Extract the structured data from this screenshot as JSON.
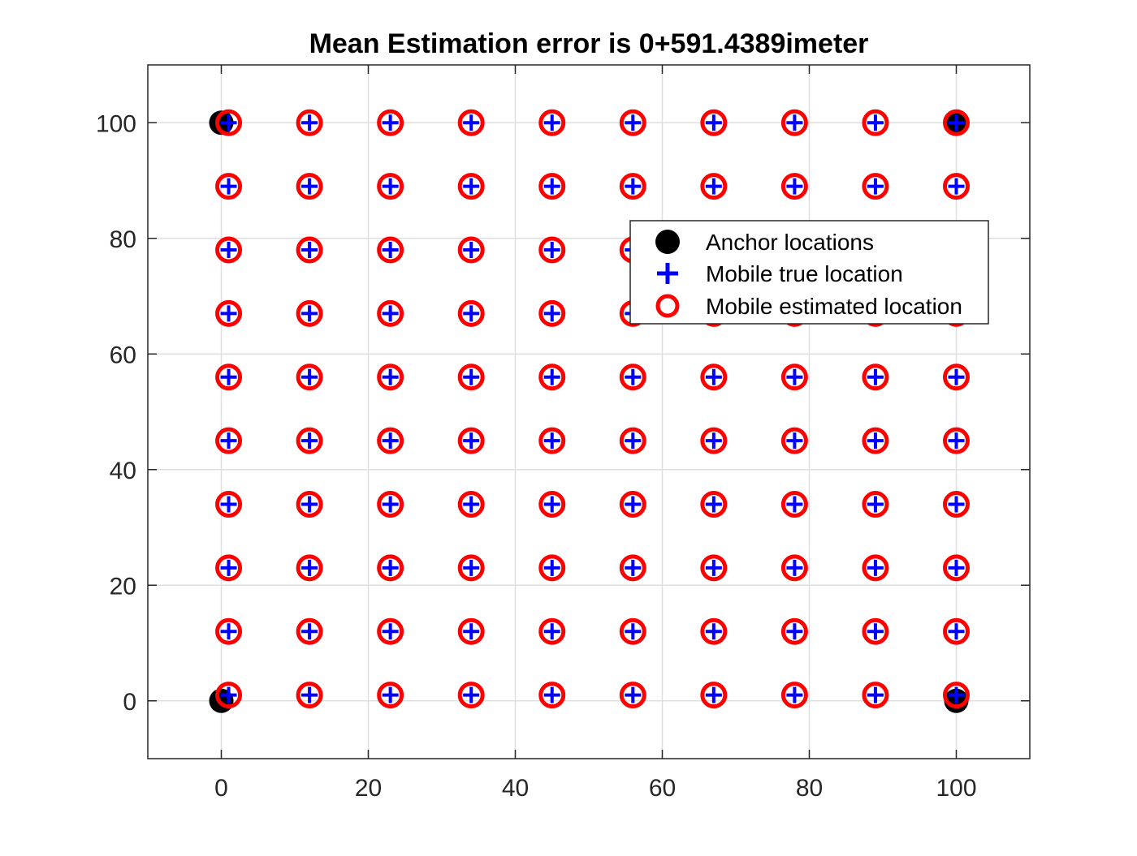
{
  "chart_data": {
    "type": "scatter",
    "title": "Mean Estimation error is 0+591.4389imeter",
    "xlabel": "",
    "ylabel": "",
    "xlim": [
      -10,
      110
    ],
    "ylim": [
      -10,
      110
    ],
    "xticks": [
      0,
      20,
      40,
      60,
      80,
      100
    ],
    "yticks": [
      0,
      20,
      40,
      60,
      80,
      100
    ],
    "grid": true,
    "legend_position": "upper-right",
    "grid_x": [
      1,
      12,
      23,
      34,
      45,
      56,
      67,
      78,
      89,
      100
    ],
    "grid_y": [
      1,
      12,
      23,
      34,
      45,
      56,
      67,
      78,
      89,
      100
    ],
    "series": [
      {
        "name": "Anchor locations",
        "marker": "filled-circle",
        "color": "#000000",
        "points": [
          [
            0,
            0
          ],
          [
            0,
            100
          ],
          [
            100,
            0
          ],
          [
            100,
            100
          ]
        ]
      },
      {
        "name": "Mobile true location",
        "marker": "plus",
        "color": "#0000ff",
        "points_note": "10x10 grid of grid_x by grid_y"
      },
      {
        "name": "Mobile estimated location",
        "marker": "open-circle",
        "color": "#ff0000",
        "points_note": "10x10 grid of grid_x by grid_y"
      }
    ]
  }
}
